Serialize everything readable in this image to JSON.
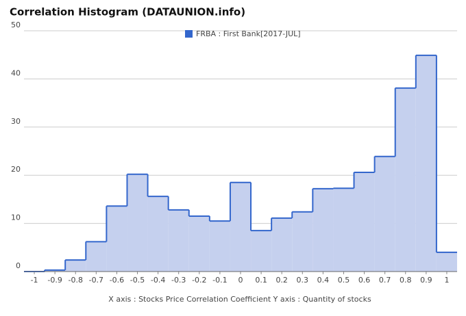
{
  "chart_data": {
    "type": "step-area",
    "title": "Correlation Histogram (DATAUNION.info)",
    "xlabel": "X axis : Stocks Price Correlation Coefficient  Y axis : Quantity of stocks",
    "x": [
      -1,
      -0.9,
      -0.8,
      -0.7,
      -0.6,
      -0.5,
      -0.4,
      -0.3,
      -0.2,
      -0.1,
      0,
      0.1,
      0.2,
      0.3,
      0.4,
      0.5,
      0.6,
      0.7,
      0.8,
      0.9,
      1
    ],
    "series": [
      {
        "name": "FRBA : First Bank[2017-JUL]",
        "color": "#3366cc",
        "fill": "#c5d0ee",
        "values": [
          0,
          0.3,
          2.4,
          6.2,
          13.6,
          20.2,
          15.6,
          12.8,
          11.5,
          10.5,
          18.5,
          8.5,
          11.1,
          12.4,
          17.2,
          17.3,
          20.6,
          23.9,
          38.1,
          44.9,
          4.0
        ]
      }
    ],
    "xlim": [
      -1.05,
      1.05
    ],
    "xticks": [
      -1,
      -0.9,
      -0.8,
      -0.7,
      -0.6,
      -0.5,
      -0.4,
      -0.3,
      -0.2,
      -0.1,
      0,
      0.1,
      0.2,
      0.3,
      0.4,
      0.5,
      0.6,
      0.7,
      0.8,
      0.9,
      1
    ],
    "ylim": [
      0,
      50
    ],
    "yticks": [
      0,
      10,
      20,
      30,
      40,
      50
    ],
    "grid": true,
    "legend": "top"
  }
}
